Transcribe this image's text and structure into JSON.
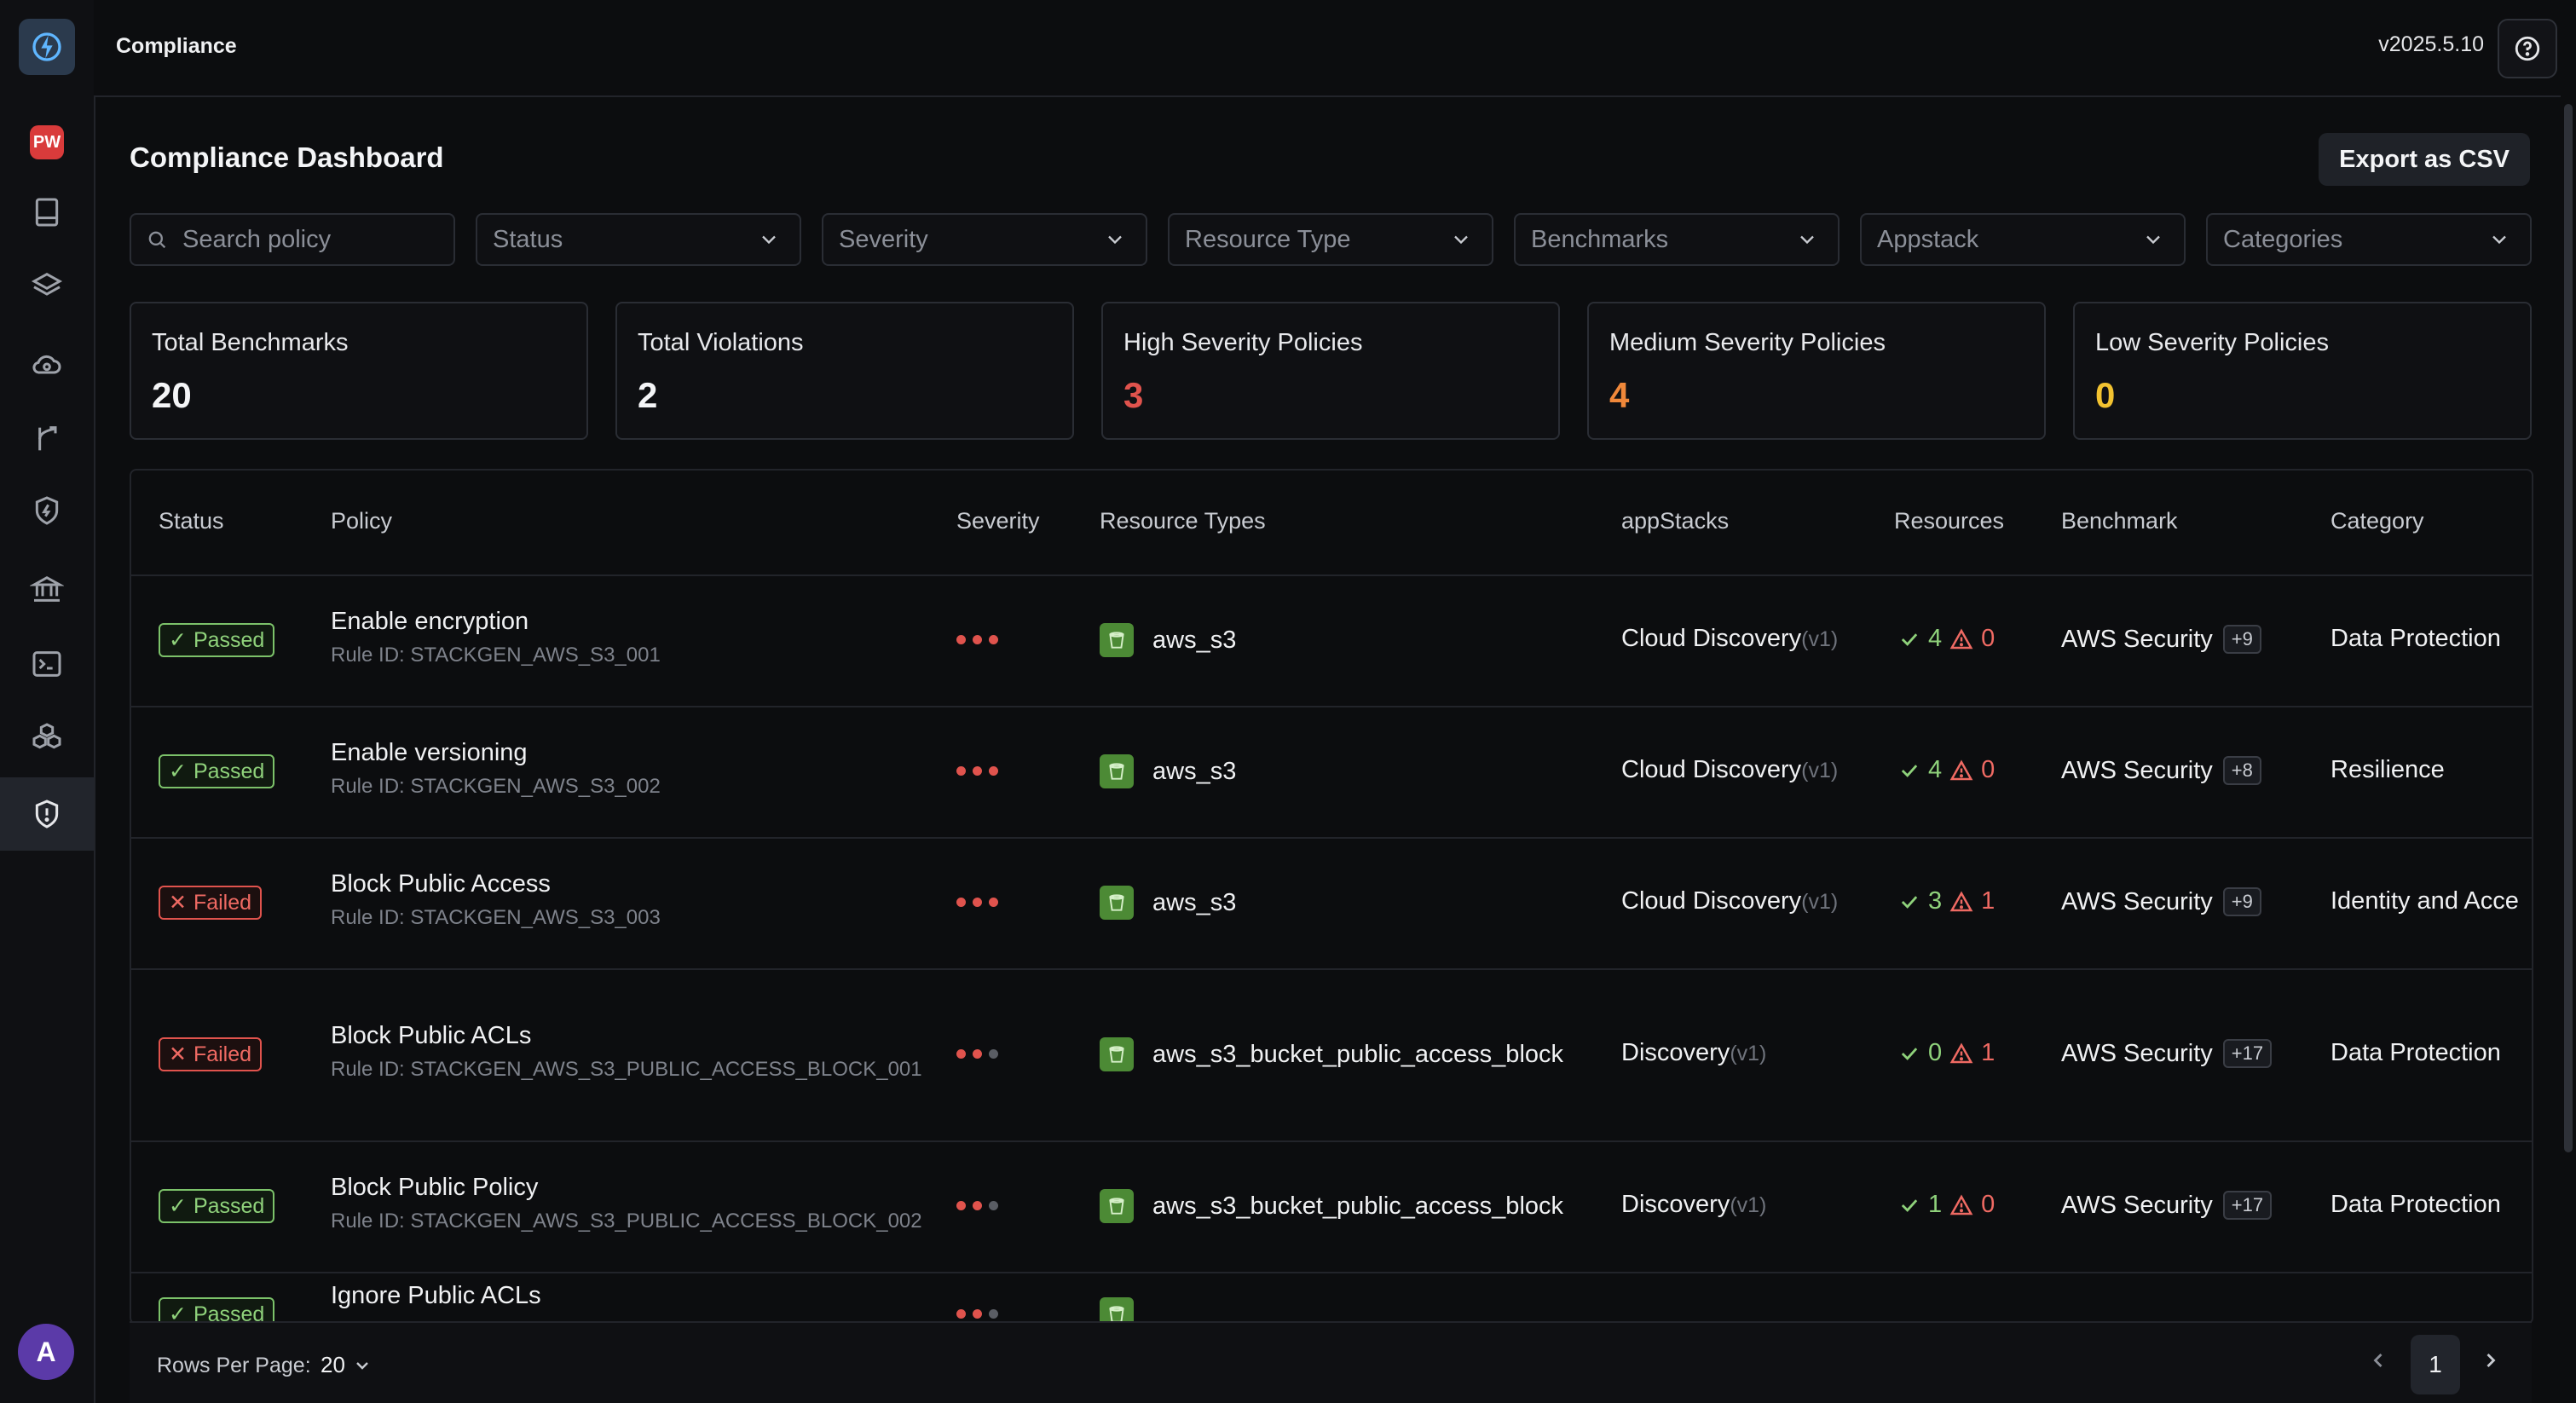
{
  "header": {
    "title": "Compliance",
    "version": "v2025.5.10",
    "help_icon": "help-circle-icon"
  },
  "sidebar": {
    "logo_icon": "bolt-logo-icon",
    "workspace_badge": "PW",
    "items": [
      {
        "name": "book-icon"
      },
      {
        "name": "layers-icon"
      },
      {
        "name": "cloud-search-icon"
      },
      {
        "name": "fork-icon"
      },
      {
        "name": "shield-bolt-icon"
      },
      {
        "name": "bank-icon"
      },
      {
        "name": "terminal-icon"
      },
      {
        "name": "cubes-icon"
      },
      {
        "name": "shield-alert-icon",
        "active": true
      }
    ],
    "avatar_initial": "A"
  },
  "page": {
    "title": "Compliance Dashboard",
    "export_label": "Export as CSV"
  },
  "filters": {
    "search_placeholder": "Search policy",
    "status": "Status",
    "severity": "Severity",
    "resource_type": "Resource Type",
    "benchmarks": "Benchmarks",
    "appstack": "Appstack",
    "categories": "Categories"
  },
  "cards": [
    {
      "title": "Total Benchmarks",
      "value": "20",
      "color": "#f4f5f7"
    },
    {
      "title": "Total Violations",
      "value": "2",
      "color": "#f4f5f7"
    },
    {
      "title": "High Severity Policies",
      "value": "3",
      "color": "#e0534d"
    },
    {
      "title": "Medium Severity Policies",
      "value": "4",
      "color": "#f0883a"
    },
    {
      "title": "Low Severity Policies",
      "value": "0",
      "color": "#f2c230"
    }
  ],
  "table": {
    "headers": {
      "status": "Status",
      "policy": "Policy",
      "severity": "Severity",
      "resource_types": "Resource Types",
      "appstacks": "appStacks",
      "resources": "Resources",
      "benchmark": "Benchmark",
      "category": "Category"
    },
    "rows": [
      {
        "status": "Passed",
        "status_mark": "✓",
        "name": "Enable encryption",
        "rule": "Rule ID: STACKGEN_AWS_S3_001",
        "severity_level": 3,
        "resource_type": "aws_s3",
        "appstack": "Cloud Discovery",
        "appstack_ver": "(v1)",
        "ok": "4",
        "warn": "0",
        "benchmark": "AWS Security",
        "bench_more": "+9",
        "category": "Data Protection"
      },
      {
        "status": "Passed",
        "status_mark": "✓",
        "name": "Enable versioning",
        "rule": "Rule ID: STACKGEN_AWS_S3_002",
        "severity_level": 3,
        "resource_type": "aws_s3",
        "appstack": "Cloud Discovery",
        "appstack_ver": "(v1)",
        "ok": "4",
        "warn": "0",
        "benchmark": "AWS Security",
        "bench_more": "+8",
        "category": "Resilience"
      },
      {
        "status": "Failed",
        "status_mark": "✕",
        "name": "Block Public Access",
        "rule": "Rule ID: STACKGEN_AWS_S3_003",
        "severity_level": 3,
        "resource_type": "aws_s3",
        "appstack": "Cloud Discovery",
        "appstack_ver": "(v1)",
        "ok": "3",
        "warn": "1",
        "benchmark": "AWS Security",
        "bench_more": "+9",
        "category": "Identity and Acce"
      },
      {
        "status": "Failed",
        "status_mark": "✕",
        "name": "Block Public ACLs",
        "rule": "Rule ID: STACKGEN_AWS_S3_PUBLIC_ACCESS_BLOCK_001",
        "severity_level": 2,
        "resource_type": "aws_s3_bucket_public_access_block",
        "appstack": "Discovery",
        "appstack_ver": "(v1)",
        "ok": "0",
        "warn": "1",
        "benchmark": "AWS Security",
        "bench_more": "+17",
        "category": "Data Protection"
      },
      {
        "status": "Passed",
        "status_mark": "✓",
        "name": "Block Public Policy",
        "rule": "Rule ID: STACKGEN_AWS_S3_PUBLIC_ACCESS_BLOCK_002",
        "severity_level": 2,
        "resource_type": "aws_s3_bucket_public_access_block",
        "appstack": "Discovery",
        "appstack_ver": "(v1)",
        "ok": "1",
        "warn": "0",
        "benchmark": "AWS Security",
        "bench_more": "+17",
        "category": "Data Protection"
      },
      {
        "status": "Passed",
        "status_mark": "✓",
        "name": "Ignore Public ACLs",
        "rule": "",
        "severity_level": 2,
        "resource_type": "",
        "appstack": "",
        "appstack_ver": "",
        "ok": "",
        "warn": "",
        "benchmark": "",
        "bench_more": "",
        "category": ""
      }
    ]
  },
  "footer": {
    "rows_per_page_label": "Rows Per Page:",
    "rows_per_page": "20",
    "current_page": "1"
  },
  "colors": {
    "severity_on": "#e0534d",
    "severity_off": "#5a5d64",
    "passed": "#8fd27b",
    "failed": "#ef6a63"
  }
}
